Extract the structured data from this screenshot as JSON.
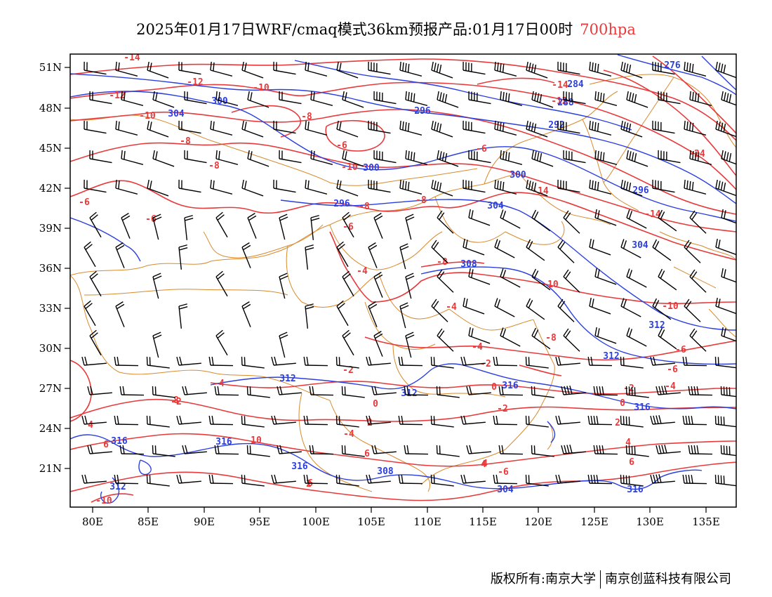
{
  "title": {
    "main": "2025年01月17日WRF/cmaq模式36km预报产品:01月17日00时",
    "level": "700hpa"
  },
  "colors": {
    "temperature_contour": "#e8393b",
    "geopotential_contour": "#2b3fe0",
    "boundary": "#d98a2e",
    "wind_barb": "#000000"
  },
  "axes": {
    "lat_ticks": [
      "51N",
      "48N",
      "45N",
      "42N",
      "39N",
      "36N",
      "33N",
      "30N",
      "27N",
      "24N",
      "21N"
    ],
    "lon_ticks": [
      "80E",
      "85E",
      "90E",
      "95E",
      "100E",
      "105E",
      "110E",
      "115E",
      "120E",
      "125E",
      "130E",
      "135E"
    ]
  },
  "temperature_labels": [
    "-14",
    "-12",
    "-10",
    "-12",
    "-10",
    "-8",
    "-6",
    "-8",
    "-8",
    "-6",
    "-6",
    "-10",
    "-6",
    "-8",
    "-8",
    "-14",
    "-12",
    "-14",
    "-24",
    "-14",
    "-6",
    "-4",
    "-8",
    "-10",
    "-10",
    "-6",
    "-4",
    "-8",
    "-2",
    "-4",
    "-2",
    "0",
    "-2",
    "-4",
    "-4",
    "-2",
    "0",
    "-4",
    "-6",
    "2",
    "-2",
    "0",
    "2",
    "4",
    "4",
    "6",
    "-6",
    "8",
    "10",
    "2",
    "4",
    "6",
    "6",
    "6",
    "4",
    "-10"
  ],
  "height_labels": [
    "300",
    "304",
    "296",
    "292",
    "296",
    "276",
    "284",
    "288",
    "300",
    "304",
    "296",
    "300",
    "304",
    "308",
    "312",
    "312",
    "312",
    "312",
    "316",
    "316",
    "316",
    "316",
    "316",
    "308",
    "304",
    "312",
    "316"
  ],
  "footer": {
    "left": "版权所有:南京大学",
    "right": "南京创蓝科技有限公司"
  }
}
